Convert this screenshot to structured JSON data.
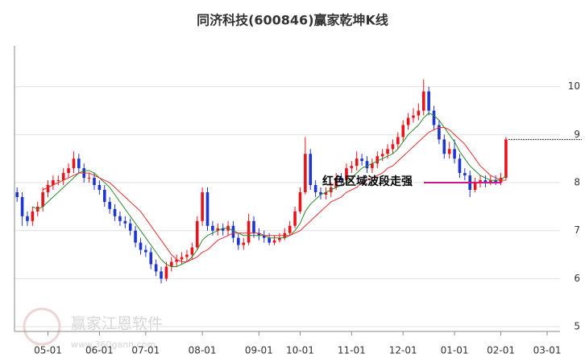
{
  "chart_data": {
    "type": "candlestick",
    "title": "同济科技(600846)赢家乾坤K线",
    "annotation": "红色区域波段走强",
    "watermark": {
      "name": "赢家江恩软件",
      "url": "www.360gann.com"
    },
    "up_color": "#e8141c",
    "down_color": "#1f35d0",
    "grid": true,
    "ylim": [
      4.9,
      10.85
    ],
    "yticks": [
      5,
      6,
      7,
      8,
      9,
      10
    ],
    "categories": [
      null,
      null,
      null,
      null,
      null,
      null,
      "05-01",
      null,
      null,
      null,
      null,
      null,
      null,
      null,
      null,
      null,
      "06-01",
      null,
      null,
      null,
      null,
      null,
      null,
      null,
      null,
      "07-01",
      null,
      null,
      null,
      null,
      null,
      null,
      null,
      null,
      null,
      null,
      "08-01",
      null,
      null,
      null,
      null,
      null,
      null,
      null,
      null,
      null,
      null,
      "09-01",
      null,
      null,
      null,
      null,
      null,
      null,
      null,
      "10-01",
      null,
      null,
      null,
      null,
      null,
      null,
      null,
      null,
      null,
      "11-01",
      null,
      null,
      null,
      null,
      null,
      null,
      null,
      null,
      null,
      "12-01",
      null,
      null,
      null,
      null,
      null,
      null,
      null,
      null,
      null,
      "01-01",
      null,
      null,
      null,
      null,
      null,
      null,
      null,
      null,
      "02-01",
      null,
      null,
      null,
      null,
      null,
      null,
      null,
      null,
      "03-01",
      null,
      null
    ],
    "open": [
      7.8,
      7.7,
      7.3,
      7.2,
      7.4,
      7.5,
      7.8,
      7.95,
      8.05,
      8.05,
      8.2,
      8.3,
      8.5,
      8.3,
      8.1,
      8.1,
      7.95,
      7.85,
      7.6,
      7.45,
      7.3,
      7.2,
      7.15,
      7.0,
      6.75,
      6.6,
      6.55,
      6.3,
      6.15,
      6.0,
      6.25,
      6.35,
      6.4,
      6.45,
      6.5,
      6.65,
      7.2,
      7.8,
      7.1,
      7.0,
      7.05,
      7.0,
      7.1,
      6.85,
      6.7,
      6.75,
      7.2,
      6.95,
      6.9,
      6.85,
      6.75,
      6.8,
      6.85,
      6.95,
      7.1,
      7.4,
      7.8,
      8.6,
      7.95,
      7.8,
      7.75,
      7.8,
      7.9,
      8.1,
      8.05,
      8.3,
      8.35,
      8.5,
      8.45,
      8.3,
      8.4,
      8.55,
      8.6,
      8.7,
      8.8,
      8.95,
      9.2,
      9.35,
      9.4,
      9.5,
      9.9,
      9.5,
      9.2,
      8.9,
      8.6,
      8.7,
      8.5,
      8.2,
      8.15,
      7.85,
      8.0,
      8.05,
      8.0,
      8.05,
      8.0,
      8.1,
      null,
      null,
      null,
      null,
      null,
      null,
      null,
      null,
      null,
      null
    ],
    "high": [
      7.9,
      7.8,
      7.4,
      7.5,
      7.6,
      7.9,
      8.05,
      8.15,
      8.15,
      8.3,
      8.4,
      8.65,
      8.6,
      8.4,
      8.2,
      8.2,
      8.05,
      7.95,
      7.7,
      7.55,
      7.4,
      7.3,
      7.25,
      7.1,
      6.85,
      6.7,
      6.65,
      6.4,
      6.25,
      6.35,
      6.45,
      6.5,
      6.55,
      6.6,
      6.75,
      7.3,
      7.9,
      7.9,
      7.2,
      7.15,
      7.15,
      7.2,
      7.2,
      6.95,
      6.85,
      7.35,
      7.3,
      7.05,
      7.0,
      6.95,
      6.9,
      6.95,
      7.05,
      7.2,
      7.5,
      7.9,
      8.95,
      8.7,
      8.05,
      7.9,
      7.9,
      8.0,
      8.2,
      8.2,
      8.4,
      8.45,
      8.65,
      8.6,
      8.55,
      8.5,
      8.65,
      8.7,
      8.8,
      8.9,
      9.05,
      9.3,
      9.45,
      9.55,
      9.65,
      10.15,
      10.0,
      9.6,
      9.3,
      9.0,
      8.85,
      8.9,
      8.6,
      8.3,
      8.25,
      8.1,
      8.15,
      8.15,
      8.15,
      8.15,
      8.2,
      8.95,
      null,
      null,
      null,
      null,
      null,
      null,
      null,
      null,
      null,
      null
    ],
    "low": [
      7.6,
      7.1,
      7.1,
      7.1,
      7.3,
      7.4,
      7.7,
      7.85,
      7.95,
      7.95,
      8.1,
      8.2,
      8.2,
      8.0,
      8.0,
      7.85,
      7.75,
      7.5,
      7.35,
      7.2,
      7.1,
      7.05,
      6.9,
      6.65,
      6.5,
      6.45,
      6.2,
      6.05,
      5.9,
      5.95,
      6.15,
      6.25,
      6.3,
      6.35,
      6.4,
      6.6,
      7.1,
      7.0,
      6.9,
      6.9,
      6.9,
      6.9,
      6.75,
      6.6,
      6.6,
      6.7,
      6.85,
      6.8,
      6.75,
      6.7,
      6.7,
      6.75,
      6.8,
      6.9,
      7.05,
      7.35,
      7.75,
      7.85,
      7.7,
      7.65,
      7.65,
      7.7,
      7.85,
      7.95,
      8.0,
      8.2,
      8.25,
      8.35,
      8.2,
      8.2,
      8.3,
      8.45,
      8.5,
      8.6,
      8.7,
      8.85,
      9.1,
      9.25,
      9.3,
      9.4,
      9.4,
      9.1,
      8.8,
      8.5,
      8.5,
      8.4,
      8.1,
      8.05,
      7.7,
      7.8,
      7.9,
      7.9,
      7.95,
      7.95,
      7.95,
      8.05,
      null,
      null,
      null,
      null,
      null,
      null,
      null,
      null,
      null,
      null
    ],
    "close": [
      7.7,
      7.3,
      7.2,
      7.4,
      7.5,
      7.8,
      7.95,
      8.05,
      8.05,
      8.2,
      8.3,
      8.5,
      8.3,
      8.1,
      8.1,
      7.95,
      7.85,
      7.6,
      7.45,
      7.3,
      7.2,
      7.15,
      7.0,
      6.75,
      6.6,
      6.55,
      6.3,
      6.15,
      6.0,
      6.25,
      6.35,
      6.4,
      6.45,
      6.5,
      6.65,
      7.2,
      7.8,
      7.1,
      7.0,
      7.05,
      7.0,
      7.1,
      6.85,
      6.7,
      6.75,
      7.2,
      6.95,
      6.9,
      6.85,
      6.75,
      6.8,
      6.85,
      6.95,
      7.1,
      7.4,
      7.8,
      8.6,
      7.95,
      7.8,
      7.75,
      7.8,
      7.9,
      8.1,
      8.05,
      8.3,
      8.35,
      8.5,
      8.45,
      8.3,
      8.4,
      8.55,
      8.6,
      8.7,
      8.8,
      8.95,
      9.2,
      9.35,
      9.4,
      9.5,
      9.9,
      9.5,
      9.2,
      8.9,
      8.6,
      8.7,
      8.5,
      8.2,
      8.15,
      7.85,
      8.0,
      8.05,
      8.0,
      8.05,
      8.0,
      8.1,
      8.9,
      null,
      null,
      null,
      null,
      null,
      null,
      null,
      null,
      null,
      null
    ],
    "ma": [
      {
        "color": "#2e8b2e",
        "values": [
          null,
          null,
          null,
          7.5,
          7.45,
          7.5,
          7.6,
          7.7,
          7.8,
          7.9,
          8.0,
          8.1,
          8.2,
          8.25,
          8.25,
          8.2,
          8.1,
          8.0,
          7.9,
          7.75,
          7.6,
          7.45,
          7.3,
          7.15,
          7.0,
          6.85,
          6.7,
          6.55,
          6.4,
          6.3,
          6.25,
          6.25,
          6.3,
          6.35,
          6.45,
          6.6,
          6.8,
          6.9,
          6.95,
          7.0,
          7.05,
          7.05,
          7.0,
          6.95,
          6.9,
          6.9,
          6.9,
          6.9,
          6.9,
          6.85,
          6.85,
          6.85,
          6.85,
          6.9,
          7.0,
          7.15,
          7.4,
          7.55,
          7.65,
          7.75,
          7.8,
          7.85,
          7.9,
          7.95,
          8.0,
          8.1,
          8.2,
          8.3,
          8.35,
          8.4,
          8.45,
          8.5,
          8.55,
          8.6,
          8.7,
          8.85,
          9.0,
          9.1,
          9.2,
          9.35,
          9.45,
          9.4,
          9.3,
          9.15,
          9.0,
          8.85,
          8.65,
          8.5,
          8.35,
          8.25,
          8.15,
          8.1,
          8.05,
          8.05,
          8.05,
          8.15,
          null,
          null,
          null,
          null,
          null,
          null,
          null,
          null,
          null,
          null
        ]
      },
      {
        "color": "#e83030",
        "values": [
          null,
          null,
          null,
          null,
          null,
          7.85,
          7.9,
          7.95,
          8.0,
          8.05,
          8.1,
          8.15,
          8.2,
          8.2,
          8.2,
          8.15,
          8.1,
          8.05,
          8.0,
          7.9,
          7.8,
          7.7,
          7.6,
          7.5,
          7.4,
          7.25,
          7.1,
          6.95,
          6.8,
          6.65,
          6.5,
          6.4,
          6.35,
          6.35,
          6.4,
          6.45,
          6.55,
          6.6,
          6.7,
          6.8,
          6.85,
          6.9,
          6.95,
          6.95,
          6.95,
          6.95,
          6.95,
          6.95,
          6.9,
          6.9,
          6.9,
          6.9,
          6.9,
          6.9,
          6.95,
          7.0,
          7.1,
          7.2,
          7.3,
          7.4,
          7.5,
          7.6,
          7.65,
          7.7,
          7.8,
          7.85,
          7.9,
          8.0,
          8.05,
          8.1,
          8.15,
          8.2,
          8.3,
          8.35,
          8.45,
          8.55,
          8.65,
          8.75,
          8.85,
          8.95,
          9.05,
          9.1,
          9.15,
          9.15,
          9.1,
          9.0,
          8.9,
          8.8,
          8.65,
          8.5,
          8.35,
          8.25,
          8.15,
          8.1,
          8.05,
          8.05,
          null,
          null,
          null,
          null,
          null,
          null,
          null,
          null,
          null,
          null
        ]
      }
    ]
  }
}
